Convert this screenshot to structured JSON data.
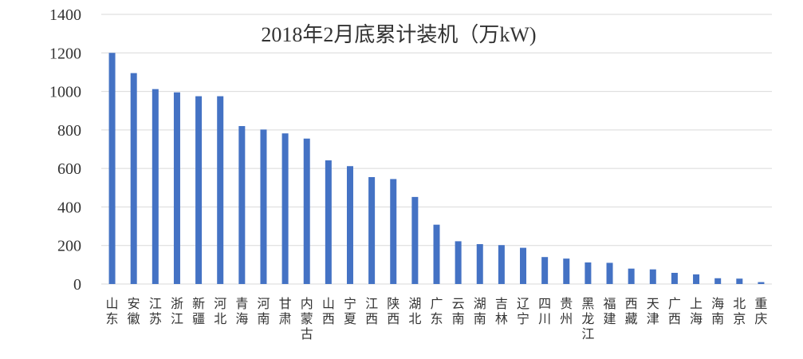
{
  "chart_data": {
    "type": "bar",
    "title": "2018年2月底累计装机（万kW)",
    "xlabel": "",
    "ylabel": "",
    "ylim": [
      0,
      1400
    ],
    "yticks": [
      0,
      200,
      400,
      600,
      800,
      1000,
      1200,
      1400
    ],
    "grid": true,
    "bar_color": "#4472c4",
    "categories": [
      "山东",
      "安徽",
      "江苏",
      "浙江",
      "新疆",
      "河北",
      "青海",
      "河南",
      "甘肃",
      "内蒙古",
      "山西",
      "宁夏",
      "江西",
      "陕西",
      "湖北",
      "广东",
      "云南",
      "湖南",
      "吉林",
      "辽宁",
      "四川",
      "贵州",
      "黑龙江",
      "福建",
      "西藏",
      "天津",
      "广西",
      "上海",
      "海南",
      "北京",
      "重庆"
    ],
    "values": [
      1200,
      1095,
      1012,
      995,
      975,
      975,
      820,
      802,
      782,
      755,
      642,
      612,
      555,
      545,
      452,
      308,
      222,
      207,
      202,
      188,
      140,
      132,
      112,
      110,
      80,
      76,
      58,
      50,
      30,
      28,
      10
    ]
  }
}
